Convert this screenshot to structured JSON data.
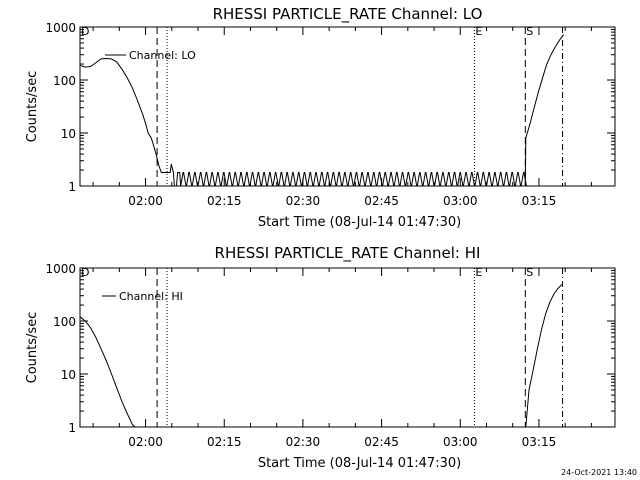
{
  "footer": {
    "timestamp": "24-Oct-2021 13:40"
  },
  "chart_data": [
    {
      "type": "line",
      "title": "RHESSI PARTICLE_RATE Channel: LO",
      "xlabel": "Start Time (08-Jul-14 01:47:30)",
      "ylabel": "Counts/sec",
      "y_scale": "log",
      "ylim": [
        1,
        1000
      ],
      "xlim_minutes": [
        0,
        102
      ],
      "x_tick_labels": [
        "02:00",
        "02:15",
        "02:30",
        "02:45",
        "03:00",
        "03:15"
      ],
      "x_tick_minutes": [
        12.5,
        27.5,
        42.5,
        57.5,
        72.5,
        87.5
      ],
      "y_tick_labels": [
        "1",
        "10",
        "100",
        "1000"
      ],
      "y_tick_values": [
        1,
        10,
        100,
        1000
      ],
      "legend": "Channel: LO",
      "markers": [
        {
          "label": "D",
          "minute": 0,
          "style": "none"
        },
        {
          "label": "",
          "minute": 14.7,
          "style": "dashed"
        },
        {
          "label": "",
          "minute": 16.6,
          "style": "dotted"
        },
        {
          "label": "E",
          "minute": 75.2,
          "style": "dotted"
        },
        {
          "label": "S",
          "minute": 84.9,
          "style": "dashed"
        },
        {
          "label": "",
          "minute": 92.0,
          "style": "dashdot"
        }
      ],
      "series": [
        {
          "x": [
            0,
            1,
            2,
            3,
            4,
            5,
            6,
            7,
            8,
            9,
            10,
            11,
            12,
            12.6,
            13.0,
            13.6,
            14.0,
            14.5,
            15.0,
            15.5,
            17.2,
            17.4,
            17.8,
            18.0,
            18.4,
            18.6,
            19.0,
            19.2,
            84.8,
            84.9,
            85.0,
            85.8,
            86.6,
            87.4,
            88.2,
            89.0,
            89.8,
            90.6,
            91.4,
            92.2
          ],
          "y": [
            190,
            175,
            180,
            210,
            250,
            255,
            250,
            220,
            160,
            110,
            70,
            40,
            22,
            14,
            10,
            8,
            6,
            4,
            2.5,
            1.8,
            1.8,
            2.6,
            1.8,
            1.0,
            1.0,
            1.8,
            1.8,
            1.0,
            1.0,
            1.0,
            8,
            15,
            30,
            60,
            110,
            200,
            300,
            420,
            560,
            720
          ]
        }
      ]
    },
    {
      "type": "line",
      "title": "RHESSI PARTICLE_RATE Channel: HI",
      "xlabel": "Start Time (08-Jul-14 01:47:30)",
      "ylabel": "Counts/sec",
      "y_scale": "log",
      "ylim": [
        1,
        1000
      ],
      "xlim_minutes": [
        0,
        102
      ],
      "x_tick_labels": [
        "02:00",
        "02:15",
        "02:30",
        "02:45",
        "03:00",
        "03:15"
      ],
      "x_tick_minutes": [
        12.5,
        27.5,
        42.5,
        57.5,
        72.5,
        87.5
      ],
      "y_tick_labels": [
        "1",
        "10",
        "100",
        "1000"
      ],
      "y_tick_values": [
        1,
        10,
        100,
        1000
      ],
      "legend": "Channel: HI",
      "markers": [
        {
          "label": "D",
          "minute": 0,
          "style": "none"
        },
        {
          "label": "",
          "minute": 14.7,
          "style": "dashed"
        },
        {
          "label": "",
          "minute": 16.6,
          "style": "dotted"
        },
        {
          "label": "E",
          "minute": 75.2,
          "style": "dotted"
        },
        {
          "label": "S",
          "minute": 84.9,
          "style": "dashed"
        },
        {
          "label": "",
          "minute": 92.0,
          "style": "dashdot"
        }
      ],
      "series": [
        {
          "x": [
            0,
            1,
            2,
            3,
            4,
            5,
            6,
            7,
            8,
            9,
            10,
            10.5,
            85.0,
            85.6,
            86.4,
            87.2,
            88.0,
            88.8,
            89.6,
            90.4,
            91.2,
            92.0
          ],
          "y": [
            120,
            100,
            75,
            50,
            30,
            18,
            10,
            5.5,
            3,
            1.8,
            1.1,
            1.0,
            1.0,
            5,
            12,
            30,
            70,
            140,
            230,
            330,
            420,
            500
          ]
        }
      ]
    }
  ]
}
